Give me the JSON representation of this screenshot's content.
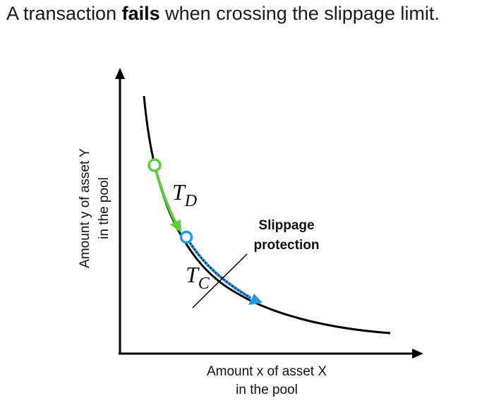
{
  "title": {
    "prefix": "A transaction ",
    "emphasis": "fails",
    "suffix": " when crossing the slippage limit."
  },
  "axes": {
    "x_label_line1": "Amount x of asset X",
    "x_label_line2": "in the pool",
    "y_label_line1": "Amount y of asset Y",
    "y_label_line2": "in the pool"
  },
  "labels": {
    "td_main": "T",
    "td_sub": "D",
    "tc_main": "T",
    "tc_sub": "C",
    "slippage_line1": "Slippage",
    "slippage_line2": "protection"
  },
  "colors": {
    "curve": "#000000",
    "td_path": "#5ccc3b",
    "tc_path": "#1e9be8",
    "tc_dash": "#000000",
    "axis": "#000000"
  }
}
